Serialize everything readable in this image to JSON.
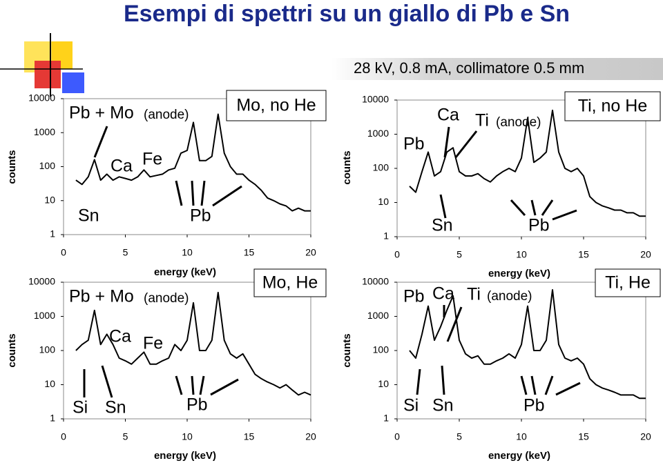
{
  "title": "Esempi di spettri su un giallo di Pb e Sn",
  "subtitle": "28 kV, 0.8 mA, collimatore 0.5 mm",
  "chart_data": [
    {
      "type": "line",
      "box_label": "Mo, no He",
      "anode_prefix": "Pb + Mo",
      "anode_note": "(anode)",
      "annotations": [
        "Ca",
        "Fe",
        "Sn",
        "Pb"
      ],
      "xlabel": "energy (keV)",
      "ylabel": "counts",
      "log_y": true,
      "color": "#000000",
      "xlim": [
        0,
        20
      ],
      "xticks": [
        0,
        5,
        10,
        15,
        20
      ],
      "ylim": [
        1,
        10000
      ],
      "yticks": [
        1,
        10,
        100,
        1000,
        10000
      ],
      "x": [
        1,
        1.5,
        2,
        2.5,
        3,
        3.5,
        4,
        4.5,
        5,
        5.5,
        6,
        6.5,
        7,
        7.5,
        8,
        8.5,
        9,
        9.5,
        10,
        10.5,
        11,
        11.5,
        12,
        12.5,
        13,
        13.5,
        14,
        14.5,
        15,
        15.5,
        16,
        16.5,
        17,
        17.5,
        18,
        18.5,
        19,
        19.5,
        20
      ],
      "values": [
        40,
        30,
        50,
        160,
        40,
        60,
        40,
        50,
        45,
        40,
        50,
        80,
        50,
        55,
        60,
        80,
        90,
        250,
        300,
        2000,
        150,
        150,
        200,
        3500,
        250,
        100,
        60,
        60,
        40,
        30,
        20,
        12,
        10,
        8,
        7,
        5,
        6,
        5,
        5
      ]
    },
    {
      "type": "line",
      "box_label": "Ti, no He",
      "anode_prefix": "Ti",
      "anode_note": "(anode)",
      "annotations": [
        "Pb",
        "Ca",
        "Sn",
        "Pb"
      ],
      "xlabel": "energy (keV)",
      "ylabel": "counts",
      "log_y": true,
      "color": "#000000",
      "xlim": [
        0,
        20
      ],
      "xticks": [
        0,
        5,
        10,
        15,
        20
      ],
      "ylim": [
        1,
        10000
      ],
      "yticks": [
        1,
        10,
        100,
        1000,
        10000
      ],
      "x": [
        1,
        1.5,
        2,
        2.5,
        3,
        3.5,
        4,
        4.5,
        5,
        5.5,
        6,
        6.5,
        7,
        7.5,
        8,
        8.5,
        9,
        9.5,
        10,
        10.5,
        11,
        11.5,
        12,
        12.5,
        13,
        13.5,
        14,
        14.5,
        15,
        15.5,
        16,
        16.5,
        17,
        17.5,
        18,
        18.5,
        19,
        19.5,
        20
      ],
      "values": [
        30,
        20,
        80,
        300,
        60,
        80,
        300,
        400,
        80,
        60,
        60,
        70,
        50,
        40,
        60,
        80,
        100,
        80,
        200,
        3000,
        150,
        200,
        300,
        5000,
        300,
        100,
        80,
        100,
        60,
        15,
        10,
        8,
        7,
        6,
        6,
        5,
        5,
        4,
        4
      ]
    },
    {
      "type": "line",
      "box_label": "Mo, He",
      "anode_prefix": "Pb + Mo",
      "anode_note": "(anode)",
      "annotations": [
        "Ca",
        "Fe",
        "Si",
        "Sn",
        "Pb"
      ],
      "xlabel": "energy (keV)",
      "ylabel": "counts",
      "log_y": true,
      "color": "#000000",
      "xlim": [
        0,
        20
      ],
      "xticks": [
        0,
        5,
        10,
        15,
        20
      ],
      "ylim": [
        1,
        10000
      ],
      "yticks": [
        1,
        10,
        100,
        1000,
        10000
      ],
      "x": [
        1,
        1.5,
        2,
        2.5,
        3,
        3.5,
        4,
        4.5,
        5,
        5.5,
        6,
        6.5,
        7,
        7.5,
        8,
        8.5,
        9,
        9.5,
        10,
        10.5,
        11,
        11.5,
        12,
        12.5,
        13,
        13.5,
        14,
        14.5,
        15,
        15.5,
        16,
        16.5,
        17,
        17.5,
        18,
        18.5,
        19,
        19.5,
        20
      ],
      "values": [
        100,
        150,
        200,
        1500,
        150,
        300,
        150,
        60,
        50,
        40,
        60,
        90,
        40,
        40,
        50,
        60,
        150,
        100,
        200,
        2500,
        100,
        100,
        200,
        5000,
        200,
        80,
        60,
        80,
        40,
        20,
        15,
        12,
        10,
        8,
        10,
        7,
        5,
        6,
        5
      ]
    },
    {
      "type": "line",
      "box_label": "Ti, He",
      "anode_prefix": "Ti",
      "anode_note": "(anode)",
      "annotations": [
        "Pb",
        "Ca",
        "Si",
        "Sn",
        "Pb"
      ],
      "xlabel": "energy (keV)",
      "ylabel": "counts",
      "log_y": true,
      "color": "#000000",
      "xlim": [
        0,
        20
      ],
      "xticks": [
        0,
        5,
        10,
        15,
        20
      ],
      "ylim": [
        1,
        10000
      ],
      "yticks": [
        1,
        10,
        100,
        1000,
        10000
      ],
      "x": [
        1,
        1.5,
        2,
        2.5,
        3,
        3.5,
        4,
        4.5,
        5,
        5.5,
        6,
        6.5,
        7,
        7.5,
        8,
        8.5,
        9,
        9.5,
        10,
        10.5,
        11,
        11.5,
        12,
        12.5,
        13,
        13.5,
        14,
        14.5,
        15,
        15.5,
        16,
        16.5,
        17,
        17.5,
        18,
        18.5,
        19,
        19.5,
        20
      ],
      "values": [
        100,
        60,
        300,
        2000,
        200,
        500,
        1500,
        4000,
        200,
        80,
        60,
        70,
        40,
        40,
        50,
        60,
        80,
        60,
        150,
        2000,
        100,
        100,
        200,
        6000,
        150,
        60,
        50,
        60,
        40,
        15,
        10,
        8,
        7,
        6,
        5,
        5,
        5,
        4,
        4
      ]
    }
  ]
}
